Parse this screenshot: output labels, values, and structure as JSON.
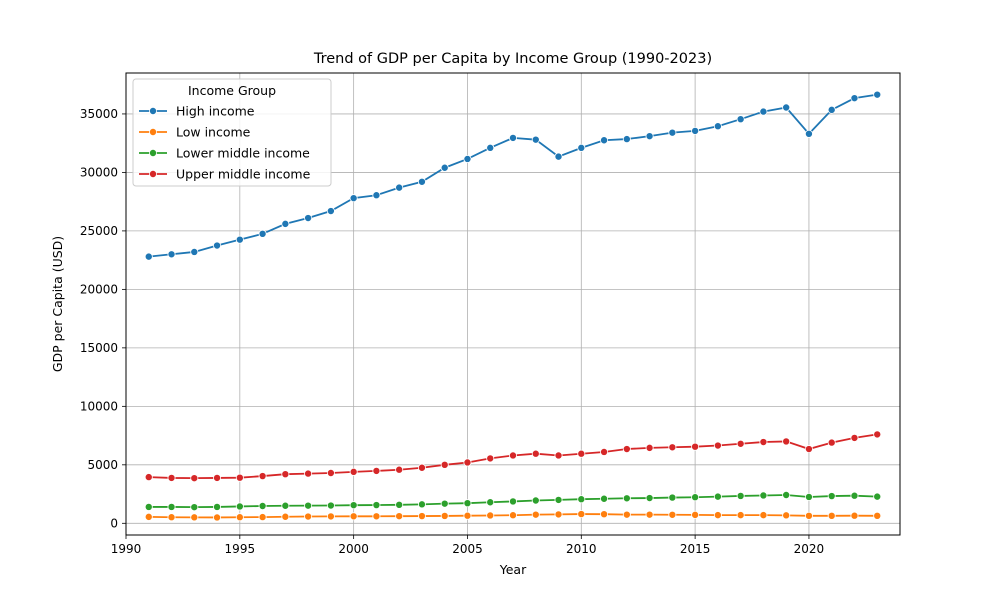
{
  "chart_data": {
    "type": "line",
    "title": "Trend of GDP per Capita by Income Group (1990-2023)",
    "xlabel": "Year",
    "ylabel": "GDP per Capita (USD)",
    "xlim": [
      1990,
      2024
    ],
    "ylim": [
      -1000,
      38500
    ],
    "xticks": [
      1990,
      1995,
      2000,
      2005,
      2010,
      2015,
      2020
    ],
    "yticks": [
      0,
      5000,
      10000,
      15000,
      20000,
      25000,
      30000,
      35000
    ],
    "grid": true,
    "legend": {
      "title": "Income Group",
      "placement": "top-left"
    },
    "x": [
      1991,
      1992,
      1993,
      1994,
      1995,
      1996,
      1997,
      1998,
      1999,
      2000,
      2001,
      2002,
      2003,
      2004,
      2005,
      2006,
      2007,
      2008,
      2009,
      2010,
      2011,
      2012,
      2013,
      2014,
      2015,
      2016,
      2017,
      2018,
      2019,
      2020,
      2021,
      2022,
      2023
    ],
    "series": [
      {
        "name": "High income",
        "color": "#1f77b4",
        "values": [
          22800,
          23000,
          23200,
          23750,
          24250,
          24750,
          25600,
          26100,
          26700,
          27800,
          28050,
          28700,
          29200,
          30400,
          31150,
          32100,
          32950,
          32800,
          31350,
          32100,
          32750,
          32850,
          33100,
          33400,
          33550,
          33950,
          34550,
          35200,
          35550,
          33300,
          35350,
          36350,
          36650
        ]
      },
      {
        "name": "Low income",
        "color": "#ff7f0e",
        "values": [
          550,
          520,
          510,
          500,
          520,
          530,
          560,
          580,
          590,
          600,
          600,
          610,
          620,
          630,
          650,
          670,
          690,
          740,
          760,
          790,
          780,
          740,
          740,
          730,
          720,
          700,
          700,
          700,
          680,
          640,
          640,
          650,
          640
        ]
      },
      {
        "name": "Lower middle income",
        "color": "#2ca02c",
        "values": [
          1400,
          1400,
          1380,
          1400,
          1440,
          1480,
          1500,
          1510,
          1520,
          1550,
          1560,
          1580,
          1620,
          1680,
          1720,
          1800,
          1870,
          1950,
          2000,
          2060,
          2100,
          2140,
          2160,
          2200,
          2230,
          2280,
          2340,
          2380,
          2420,
          2250,
          2330,
          2360,
          2280
        ]
      },
      {
        "name": "Upper middle income",
        "color": "#d62728",
        "values": [
          3950,
          3880,
          3860,
          3880,
          3900,
          4040,
          4200,
          4250,
          4300,
          4400,
          4480,
          4580,
          4750,
          5000,
          5200,
          5550,
          5800,
          5950,
          5800,
          5950,
          6100,
          6350,
          6450,
          6500,
          6550,
          6650,
          6800,
          6950,
          7000,
          6350,
          6900,
          7300,
          7600
        ]
      }
    ]
  }
}
